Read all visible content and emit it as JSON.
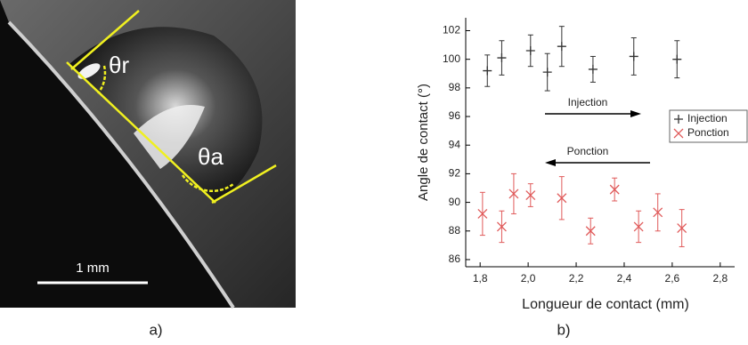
{
  "photo": {
    "theta_r": "θr",
    "theta_a": "θa",
    "scale": "1 mm"
  },
  "panels": [
    "a)",
    "b)"
  ],
  "chart_data": {
    "type": "errorbar-scatter",
    "ylabel": "Angle de contact (°)",
    "xlabel": "Longueur de contact (mm)",
    "xlim": [
      1.74,
      2.86
    ],
    "ylim": [
      85.5,
      102.9
    ],
    "xticks": [
      {
        "value": 1.8,
        "label": "1,8"
      },
      {
        "value": 2.0,
        "label": "2,0"
      },
      {
        "value": 2.2,
        "label": "2,2"
      },
      {
        "value": 2.4,
        "label": "2,4"
      },
      {
        "value": 2.6,
        "label": "2,6"
      },
      {
        "value": 2.8,
        "label": "2,8"
      }
    ],
    "yticks": [
      86,
      88,
      90,
      92,
      94,
      96,
      98,
      100,
      102
    ],
    "legend": "right",
    "annotations": [
      "Injection",
      "Ponction"
    ],
    "series": [
      {
        "name": "Injection",
        "color": "#333333",
        "marker": "+",
        "x": [
          1.83,
          1.89,
          2.01,
          2.08,
          2.14,
          2.27,
          2.44,
          2.62
        ],
        "values": [
          99.2,
          100.1,
          100.6,
          99.1,
          100.9,
          99.3,
          100.2,
          100.0
        ],
        "errors": [
          1.1,
          1.2,
          1.1,
          1.3,
          1.4,
          0.9,
          1.3,
          1.3
        ]
      },
      {
        "name": "Ponction",
        "color": "#e05a5a",
        "marker": "x",
        "x": [
          1.81,
          1.89,
          1.94,
          2.01,
          2.14,
          2.26,
          2.36,
          2.46,
          2.54,
          2.64
        ],
        "values": [
          89.2,
          88.3,
          90.6,
          90.5,
          90.3,
          88.0,
          90.9,
          88.3,
          89.3,
          88.2
        ],
        "errors": [
          1.5,
          1.1,
          1.4,
          0.8,
          1.5,
          0.9,
          0.8,
          1.1,
          1.3,
          1.3
        ]
      }
    ]
  }
}
